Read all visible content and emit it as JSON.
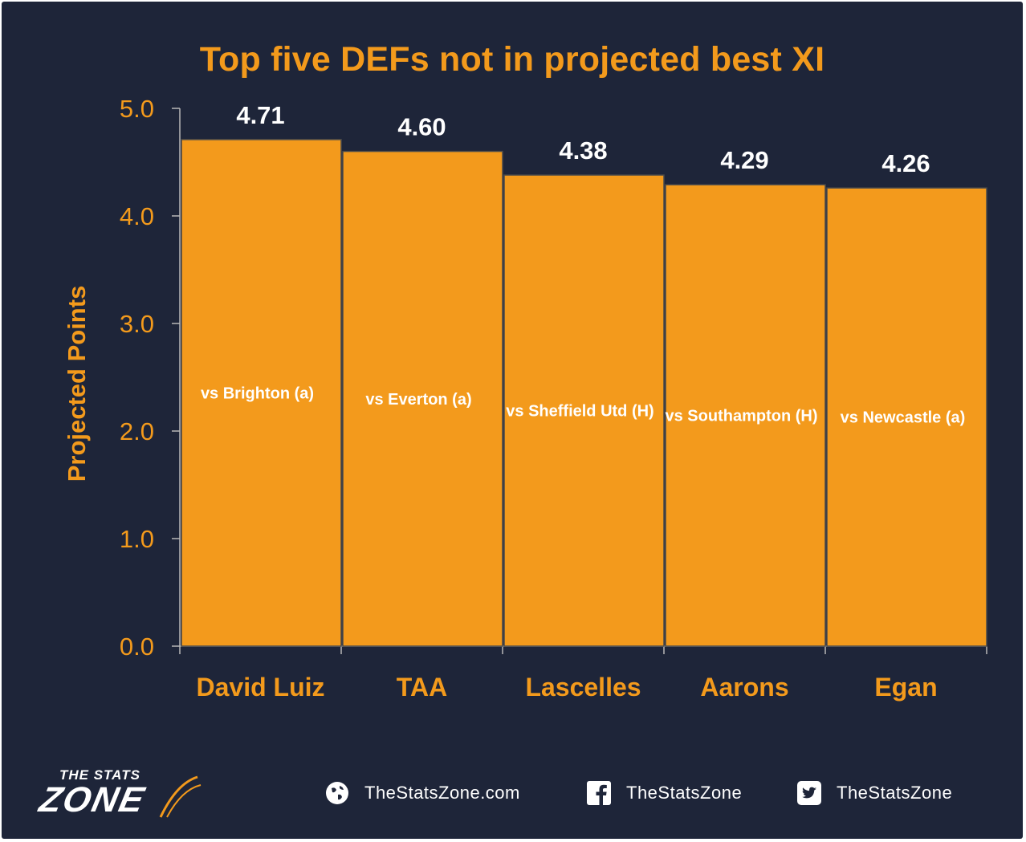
{
  "chart_data": {
    "type": "bar",
    "title": "Top five DEFs not in projected best XI",
    "xlabel": "",
    "ylabel": "Projected Points",
    "ylim": [
      0,
      5
    ],
    "yticks": [
      "0.0",
      "1.0",
      "2.0",
      "3.0",
      "4.0",
      "5.0"
    ],
    "categories": [
      "David Luiz",
      "TAA",
      "Lascelles",
      "Aarons",
      "Egan"
    ],
    "values": [
      4.71,
      4.6,
      4.38,
      4.29,
      4.26
    ],
    "value_labels": [
      "4.71",
      "4.60",
      "4.38",
      "4.29",
      "4.26"
    ],
    "bar_annotations": [
      "vs Brighton (a)",
      "vs Everton (a)",
      "vs Sheffield Utd (H)",
      "vs Southampton (H)",
      "vs Newcastle (a)"
    ],
    "grid": false,
    "legend": "none",
    "colors": {
      "bar": "#f39a1c",
      "bar_edge": "#4a4a4a",
      "background": "#1e2539",
      "text_accent": "#f39a1c",
      "value_text": "#ffffff"
    }
  },
  "footer": {
    "logo_top": "THE STATS",
    "logo_main": "ZONE",
    "website": {
      "icon": "globe-icon",
      "text": "TheStatsZone.com"
    },
    "facebook": {
      "icon": "facebook-icon",
      "text": "TheStatsZone"
    },
    "twitter": {
      "icon": "twitter-icon",
      "text": "TheStatsZone"
    }
  }
}
